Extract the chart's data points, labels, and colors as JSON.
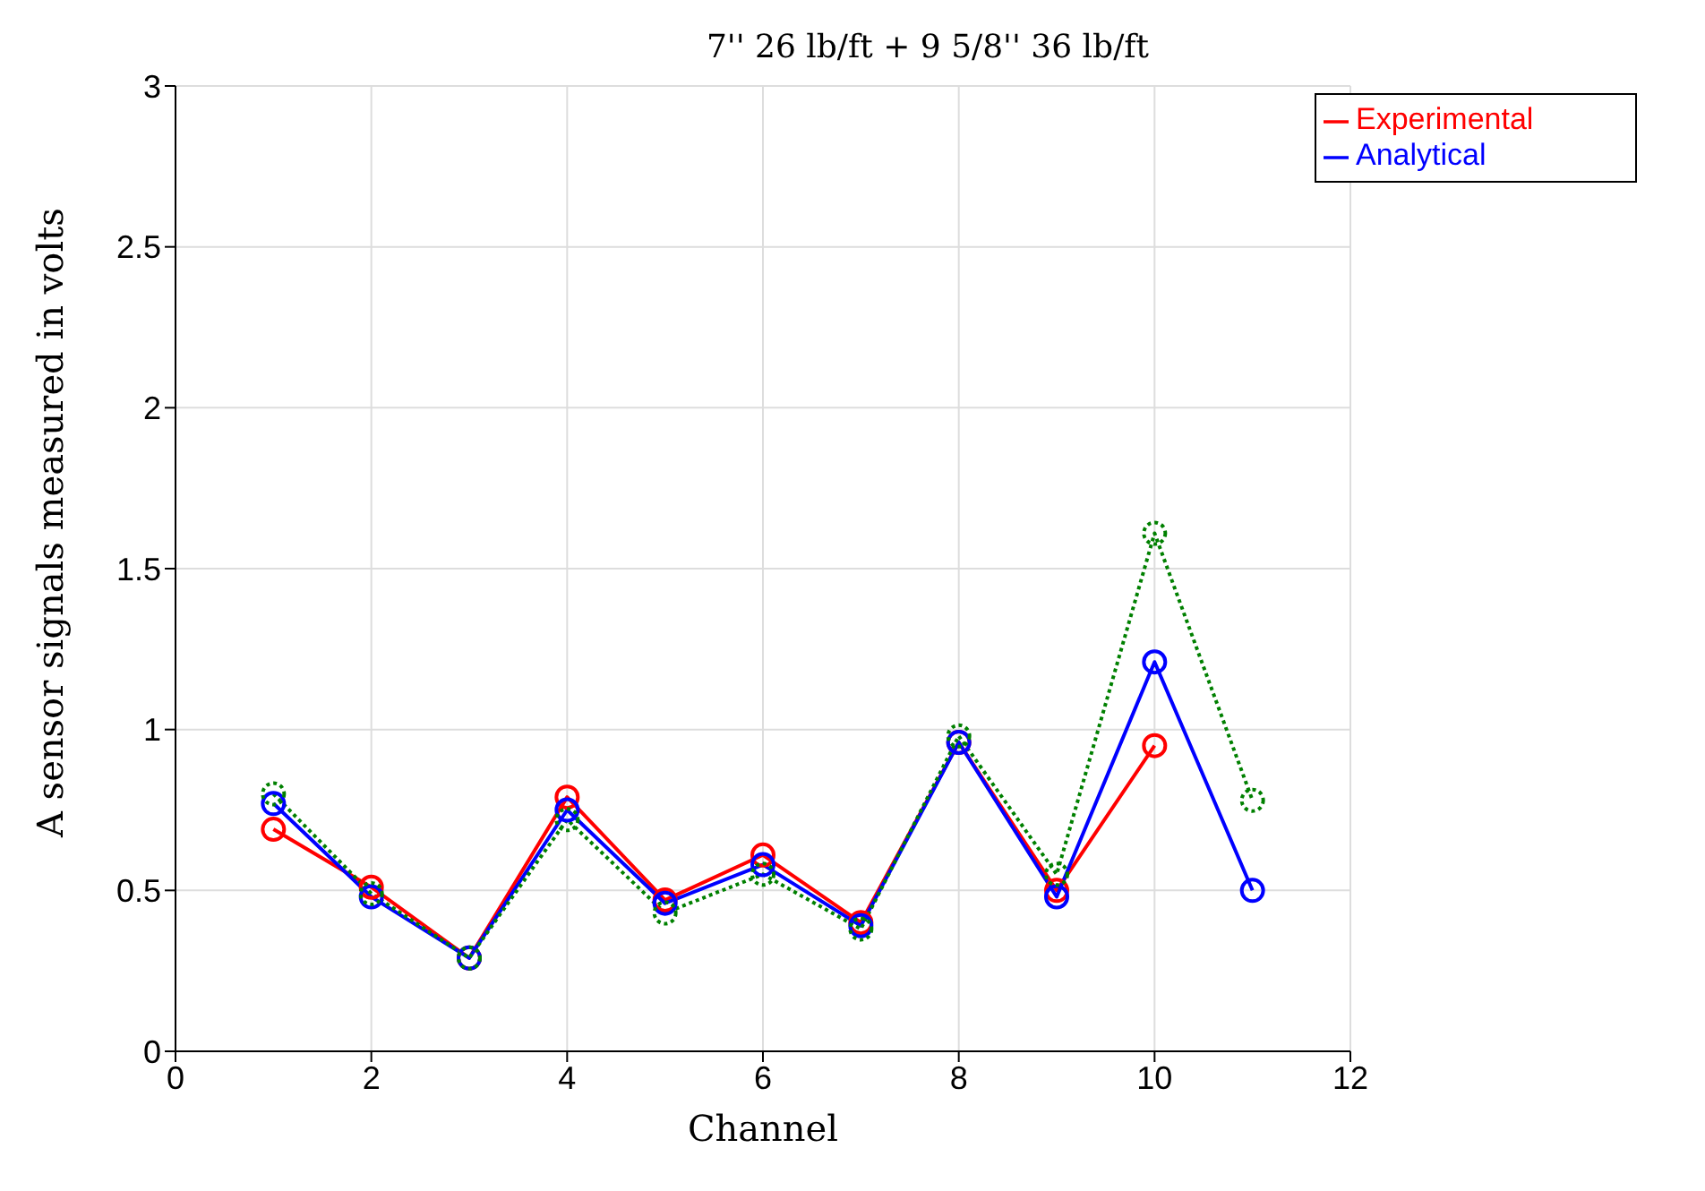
{
  "chart_data": {
    "type": "line",
    "title": "7'' 26 lb/ft + 9 5/8'' 36 lb/ft",
    "xlabel": "Channel",
    "ylabel": "A sensor signals measured in volts",
    "x": [
      1,
      2,
      3,
      4,
      5,
      6,
      7,
      8,
      9,
      10,
      11
    ],
    "series": [
      {
        "name": "Experimental",
        "color": "#ff0000",
        "line_style": "solid",
        "values": [
          0.69,
          0.51,
          0.29,
          0.79,
          0.47,
          0.61,
          0.4,
          0.96,
          0.5,
          0.95,
          null
        ]
      },
      {
        "name": "Analytical",
        "color": "#0000ff",
        "line_style": "solid",
        "values": [
          0.77,
          0.48,
          0.29,
          0.75,
          0.46,
          0.58,
          0.39,
          0.96,
          0.48,
          1.21,
          0.5
        ]
      },
      {
        "color": "#008000",
        "line_style": "dotted",
        "values": [
          0.8,
          0.49,
          0.29,
          0.72,
          0.43,
          0.55,
          0.38,
          0.98,
          0.55,
          1.61,
          0.78
        ]
      }
    ],
    "xlim": [
      0,
      12
    ],
    "xticks": [
      0,
      2,
      4,
      6,
      8,
      10,
      12
    ],
    "ylim": [
      0,
      3
    ],
    "yticks": [
      0,
      0.5,
      1,
      1.5,
      2,
      2.5,
      3
    ],
    "grid": true,
    "legend": "top right",
    "marker": "circle"
  }
}
